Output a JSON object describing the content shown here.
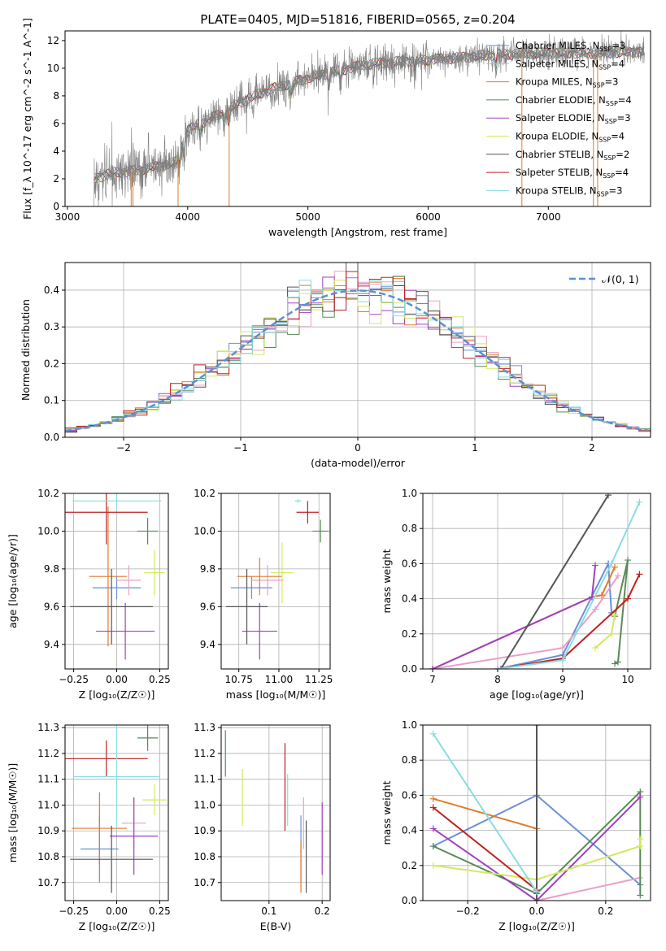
{
  "figure": {
    "title": "PLATE=0405, MJD=51816, FIBERID=0565, z=0.204"
  },
  "colors": {
    "chabrier_miles": "#6b8fd6",
    "salpeter_miles": "#e8a0c8",
    "kroupa_miles": "#e07b2a",
    "chabrier_elodie": "#5a8a5a",
    "salpeter_elodie": "#a040c0",
    "kroupa_elodie": "#d4e860",
    "chabrier_stelib": "#555555",
    "salpeter_stelib": "#c02020",
    "kroupa_stelib": "#88dde0",
    "normal_curve": "#5b8fd6"
  },
  "legend_spectrum": [
    {
      "label": "Chabrier MILES, N",
      "sub": "SSP",
      "suffix": "=3",
      "color": "#6b8fd6"
    },
    {
      "label": "Salpeter MILES, N",
      "sub": "SSP",
      "suffix": "=4",
      "color": "#e8a0c8"
    },
    {
      "label": "Kroupa MILES, N",
      "sub": "SSP",
      "suffix": "=3",
      "color": "#e07b2a"
    },
    {
      "label": "Chabrier ELODIE, N",
      "sub": "SSP",
      "suffix": "=4",
      "color": "#5a8a5a"
    },
    {
      "label": "Salpeter ELODIE, N",
      "sub": "SSP",
      "suffix": "=3",
      "color": "#a040c0"
    },
    {
      "label": "Kroupa ELODIE, N",
      "sub": "SSP",
      "suffix": "=4",
      "color": "#d4e860"
    },
    {
      "label": "Chabrier STELIB, N",
      "sub": "SSP",
      "suffix": "=2",
      "color": "#555555"
    },
    {
      "label": "Salpeter STELIB, N",
      "sub": "SSP",
      "suffix": "=4",
      "color": "#c02020"
    },
    {
      "label": "Kroupa STELIB, N",
      "sub": "SSP",
      "suffix": "=3",
      "color": "#88dde0"
    }
  ],
  "chart_data": [
    {
      "id": "spectrum",
      "type": "line",
      "xlabel": "wavelength [Angstrom, rest frame]",
      "ylabel": "Flux [f_λ 10^-17 erg cm^-2 s^-1 A^-1]",
      "xlim": [
        2980,
        7850
      ],
      "ylim": [
        0,
        12.7
      ],
      "xticks": [
        3000,
        4000,
        5000,
        6000,
        7000
      ],
      "yticks": [
        0,
        2,
        4,
        6,
        8,
        10,
        12
      ],
      "grid": false,
      "data_range": [
        3220,
        7800
      ],
      "continuum": {
        "x": [
          3220,
          3400,
          3500,
          3700,
          3900,
          4000,
          4100,
          4300,
          4500,
          4700,
          5000,
          5200,
          5500,
          5800,
          6000,
          6300,
          6600,
          7000,
          7400,
          7800
        ],
        "y": [
          2.0,
          2.5,
          2.5,
          2.8,
          3.2,
          5.5,
          6.0,
          6.8,
          7.8,
          8.5,
          9.3,
          9.7,
          10.3,
          10.5,
          10.6,
          10.8,
          11.0,
          11.1,
          11.1,
          11.2
        ]
      },
      "legend_position": "upper right"
    },
    {
      "id": "residual_histogram",
      "type": "line",
      "xlabel": "(data-model)/error",
      "ylabel": "Normed distribution",
      "xlim": [
        -2.5,
        2.5
      ],
      "ylim": [
        0,
        0.475
      ],
      "xticks": [
        -2,
        -1,
        0,
        1,
        2
      ],
      "yticks": [
        0.0,
        0.1,
        0.2,
        0.3,
        0.4
      ],
      "grid": true,
      "bin_width": 0.1,
      "normal_curve": {
        "label": "𝒩(0, 1)",
        "mean": 0,
        "sigma": 1,
        "style": "dashed"
      },
      "legend_position": "upper right"
    },
    {
      "id": "age_vs_Z",
      "type": "scatter",
      "xlabel": "Z [log₁₀(Z/Z☉)]",
      "ylabel": "age  [log₁₀(age/yr)]",
      "xlim": [
        -0.3,
        0.3
      ],
      "ylim": [
        9.27,
        10.2
      ],
      "xticks": [
        -0.25,
        0.0,
        0.25
      ],
      "yticks": [
        9.4,
        9.6,
        9.8,
        10.0,
        10.2
      ],
      "grid": true,
      "points": [
        {
          "model": "chabrier_miles",
          "x": 0.0,
          "xerr": 0.14,
          "y": 9.7,
          "yerr": 0.06
        },
        {
          "model": "salpeter_miles",
          "x": 0.07,
          "xerr": 0.07,
          "y": 9.74,
          "yerr": 0.08
        },
        {
          "model": "kroupa_miles",
          "x": -0.05,
          "xerr": 0.11,
          "y": 9.76,
          "yerr": 0.37
        },
        {
          "model": "chabrier_elodie",
          "x": 0.18,
          "xerr": 0.06,
          "y": 10.0,
          "yerr": 0.07
        },
        {
          "model": "salpeter_elodie",
          "x": 0.05,
          "xerr": 0.17,
          "y": 9.47,
          "yerr": 0.15
        },
        {
          "model": "kroupa_elodie",
          "x": 0.22,
          "xerr": 0.06,
          "y": 9.78,
          "yerr": 0.12
        },
        {
          "model": "chabrier_stelib",
          "x": -0.03,
          "xerr": 0.24,
          "y": 9.6,
          "yerr": 0.2
        },
        {
          "model": "salpeter_stelib",
          "x": -0.06,
          "xerr": 0.24,
          "y": 10.1,
          "yerr": 0.17
        },
        {
          "model": "kroupa_stelib",
          "x": 0.0,
          "xerr": 0.26,
          "y": 10.16,
          "yerr": 0.04
        }
      ]
    },
    {
      "id": "age_vs_mass",
      "type": "scatter",
      "xlabel": "mass [log₁₀(M/M☉)]",
      "ylabel": "",
      "xlim": [
        10.64,
        11.32
      ],
      "ylim": [
        9.27,
        10.2
      ],
      "xticks": [
        10.75,
        11.0,
        11.25
      ],
      "yticks": [
        9.4,
        9.6,
        9.8,
        10.0,
        10.2
      ],
      "grid": true,
      "points": [
        {
          "model": "chabrier_miles",
          "x": 10.83,
          "xerr": 0.13,
          "y": 9.7,
          "yerr": 0.06
        },
        {
          "model": "salpeter_miles",
          "x": 10.93,
          "xerr": 0.1,
          "y": 9.74,
          "yerr": 0.08
        },
        {
          "model": "kroupa_miles",
          "x": 10.88,
          "xerr": 0.14,
          "y": 9.76,
          "yerr": 0.1
        },
        {
          "model": "chabrier_elodie",
          "x": 11.26,
          "xerr": 0.05,
          "y": 10.0,
          "yerr": 0.06
        },
        {
          "model": "salpeter_elodie",
          "x": 10.88,
          "xerr": 0.11,
          "y": 9.47,
          "yerr": 0.15
        },
        {
          "model": "kroupa_elodie",
          "x": 11.02,
          "xerr": 0.07,
          "y": 9.78,
          "yerr": 0.16
        },
        {
          "model": "chabrier_stelib",
          "x": 10.8,
          "xerr": 0.13,
          "y": 9.6,
          "yerr": 0.2
        },
        {
          "model": "salpeter_stelib",
          "x": 11.18,
          "xerr": 0.07,
          "y": 10.1,
          "yerr": 0.06
        },
        {
          "model": "kroupa_stelib",
          "x": 11.12,
          "xerr": 0.02,
          "y": 10.16,
          "yerr": 0.01
        }
      ]
    },
    {
      "id": "mass_weight_vs_age",
      "type": "line",
      "xlabel": "age  [log₁₀(age/yr)]",
      "ylabel": "mass weight",
      "xlim": [
        6.85,
        10.35
      ],
      "ylim": [
        0,
        1.0
      ],
      "xticks": [
        7,
        8,
        9,
        10
      ],
      "yticks": [
        0.0,
        0.2,
        0.4,
        0.6,
        0.8,
        1.0
      ],
      "grid": true,
      "series": [
        {
          "model": "chabrier_miles",
          "x": [
            8.0,
            9.0,
            9.7,
            9.75
          ],
          "y": [
            0.0,
            0.08,
            0.6,
            0.32
          ]
        },
        {
          "model": "salpeter_miles",
          "x": [
            7.0,
            9.0,
            9.5,
            9.85
          ],
          "y": [
            0.0,
            0.12,
            0.34,
            0.53
          ]
        },
        {
          "model": "kroupa_miles",
          "x": [
            7.0,
            9.45,
            9.6,
            9.8
          ],
          "y": [
            0.0,
            0.41,
            0.42,
            0.58
          ]
        },
        {
          "model": "chabrier_elodie",
          "x": [
            9.8,
            9.85,
            10.0,
            9.8
          ],
          "y": [
            0.03,
            0.04,
            0.62,
            0.3
          ]
        },
        {
          "model": "salpeter_elodie",
          "x": [
            7.0,
            9.45,
            9.5
          ],
          "y": [
            0.0,
            0.41,
            0.59
          ]
        },
        {
          "model": "kroupa_elodie",
          "x": [
            9.5,
            9.75,
            9.8
          ],
          "y": [
            0.12,
            0.2,
            0.31
          ]
        },
        {
          "model": "chabrier_stelib",
          "x": [
            8.05,
            9.7
          ],
          "y": [
            0.0,
            0.99
          ]
        },
        {
          "model": "salpeter_stelib",
          "x": [
            8.0,
            9.0,
            10.0,
            10.18
          ],
          "y": [
            0.0,
            0.06,
            0.4,
            0.54
          ]
        },
        {
          "model": "kroupa_stelib",
          "x": [
            8.0,
            9.0,
            9.75,
            10.18
          ],
          "y": [
            0.0,
            0.05,
            0.6,
            0.95
          ]
        }
      ]
    },
    {
      "id": "mass_vs_Z",
      "type": "scatter",
      "xlabel": "Z [log₁₀(Z/Z☉)]",
      "ylabel": "mass [log₁₀(M/M☉)]",
      "xlim": [
        -0.3,
        0.3
      ],
      "ylim": [
        10.63,
        11.31
      ],
      "xticks": [
        -0.25,
        0.0,
        0.25
      ],
      "yticks": [
        10.7,
        10.8,
        10.9,
        11.0,
        11.1,
        11.2,
        11.3
      ],
      "grid": true,
      "points": [
        {
          "model": "chabrier_miles",
          "x": -0.1,
          "xerr": 0.11,
          "y": 10.83,
          "yerr": 0.13
        },
        {
          "model": "salpeter_miles",
          "x": 0.1,
          "xerr": 0.07,
          "y": 10.93,
          "yerr": 0.1
        },
        {
          "model": "kroupa_miles",
          "x": -0.1,
          "xerr": 0.16,
          "y": 10.91,
          "yerr": 0.14
        },
        {
          "model": "chabrier_elodie",
          "x": 0.18,
          "xerr": 0.06,
          "y": 11.26,
          "yerr": 0.05
        },
        {
          "model": "salpeter_elodie",
          "x": 0.1,
          "xerr": 0.14,
          "y": 10.88,
          "yerr": 0.15
        },
        {
          "model": "kroupa_elodie",
          "x": 0.22,
          "xerr": 0.07,
          "y": 11.02,
          "yerr": 0.06
        },
        {
          "model": "chabrier_stelib",
          "x": -0.03,
          "xerr": 0.24,
          "y": 10.79,
          "yerr": 0.13
        },
        {
          "model": "salpeter_stelib",
          "x": -0.06,
          "xerr": 0.24,
          "y": 11.18,
          "yerr": 0.07
        },
        {
          "model": "kroupa_stelib",
          "x": 0.0,
          "xerr": 0.25,
          "y": 11.11,
          "yerr": 0.2
        }
      ]
    },
    {
      "id": "mass_vs_ebv",
      "type": "scatter",
      "xlabel": "E(B-V)",
      "ylabel": "",
      "xlim": [
        0.01,
        0.215
      ],
      "ylim": [
        10.63,
        11.31
      ],
      "xticks": [
        0.1,
        0.2
      ],
      "yticks": [
        10.7,
        10.8,
        10.9,
        11.0,
        11.1,
        11.2,
        11.3
      ],
      "grid": true,
      "points": [
        {
          "model": "chabrier_miles",
          "x": 0.16,
          "y": 10.83,
          "yerr": 0.13
        },
        {
          "model": "salpeter_miles",
          "x": 0.165,
          "y": 10.93,
          "yerr": 0.1
        },
        {
          "model": "kroupa_miles",
          "x": 0.16,
          "y": 10.76,
          "yerr": 0.1
        },
        {
          "model": "chabrier_elodie",
          "x": 0.018,
          "y": 11.2,
          "yerr": 0.09
        },
        {
          "model": "salpeter_elodie",
          "x": 0.2,
          "y": 10.87,
          "yerr": 0.14
        },
        {
          "model": "kroupa_elodie",
          "x": 0.05,
          "y": 11.03,
          "yerr": 0.11
        },
        {
          "model": "chabrier_stelib",
          "x": 0.17,
          "y": 10.8,
          "yerr": 0.14
        },
        {
          "model": "salpeter_stelib",
          "x": 0.13,
          "y": 11.07,
          "yerr": 0.17
        },
        {
          "model": "kroupa_stelib",
          "x": 0.135,
          "y": 11.02,
          "yerr": 0.1
        }
      ]
    },
    {
      "id": "mass_weight_vs_Z",
      "type": "line",
      "xlabel": "Z [log₁₀(Z/Z☉)]",
      "ylabel": "mass weight",
      "xlim": [
        -0.33,
        0.33
      ],
      "ylim": [
        0,
        1.0
      ],
      "xticks": [
        -0.2,
        0.0,
        0.2
      ],
      "yticks": [
        0.0,
        0.2,
        0.4,
        0.6,
        0.8,
        1.0
      ],
      "grid": true,
      "series": [
        {
          "model": "chabrier_miles",
          "x": [
            -0.3,
            0.0,
            0.3
          ],
          "y": [
            0.31,
            0.6,
            0.09
          ]
        },
        {
          "model": "salpeter_miles",
          "x": [
            0.0,
            0.3
          ],
          "y": [
            0.0,
            0.13
          ]
        },
        {
          "model": "kroupa_miles",
          "x": [
            -0.3,
            0.0
          ],
          "y": [
            0.58,
            0.41
          ]
        },
        {
          "model": "chabrier_elodie",
          "x": [
            -0.3,
            0.0,
            0.3,
            0.3
          ],
          "y": [
            0.31,
            0.04,
            0.62,
            0.03
          ]
        },
        {
          "model": "salpeter_elodie",
          "x": [
            -0.3,
            0.0,
            0.3
          ],
          "y": [
            0.41,
            0.0,
            0.59
          ]
        },
        {
          "model": "kroupa_elodie",
          "x": [
            -0.3,
            0.0,
            0.3,
            0.3
          ],
          "y": [
            0.2,
            0.12,
            0.31,
            0.35
          ]
        },
        {
          "model": "chabrier_stelib",
          "x": [
            0.0,
            0.0
          ],
          "y": [
            0.0,
            1.0
          ]
        },
        {
          "model": "salpeter_stelib",
          "x": [
            -0.3,
            0.0
          ],
          "y": [
            0.53,
            0.06
          ]
        },
        {
          "model": "kroupa_stelib",
          "x": [
            -0.3,
            0.0
          ],
          "y": [
            0.95,
            0.05
          ]
        }
      ]
    }
  ]
}
